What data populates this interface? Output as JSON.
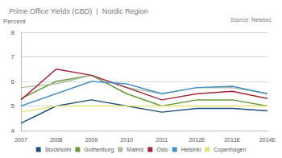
{
  "chart_data": {
    "type": "line",
    "title": "Prime Office Yields (CBD)  |  Nordic Region",
    "source": "Source: Newsec",
    "y_label": "Percent",
    "categories": [
      "2007",
      "2008",
      "2009",
      "2010",
      "2011",
      "2012E",
      "2013E",
      "2014E"
    ],
    "series": [
      {
        "name": "Stockholm",
        "color": "#1f4e79",
        "values": [
          4.3,
          5.0,
          5.25,
          5.0,
          4.75,
          4.9,
          4.9,
          4.8
        ]
      },
      {
        "name": "Gothenburg",
        "color": "#6a9a3a",
        "values": [
          5.3,
          6.0,
          6.25,
          5.5,
          5.0,
          5.25,
          5.25,
          5.0
        ]
      },
      {
        "name": "Malmö",
        "color": "#a9bfa0",
        "values": [
          5.75,
          5.9,
          6.25,
          5.75,
          5.5,
          5.75,
          5.75,
          5.5
        ]
      },
      {
        "name": "Oslo",
        "color": "#a4243b",
        "values": [
          5.25,
          6.5,
          6.25,
          5.75,
          5.25,
          5.5,
          5.6,
          5.3
        ]
      },
      {
        "name": "Helsinki",
        "color": "#4a90c8",
        "values": [
          5.0,
          5.5,
          6.0,
          5.9,
          5.5,
          5.75,
          5.8,
          5.5
        ]
      },
      {
        "name": "Copenhagen",
        "color": "#e3e37a",
        "values": [
          4.75,
          5.0,
          5.0,
          5.0,
          5.0,
          5.0,
          5.0,
          5.0
        ]
      }
    ],
    "ylim": [
      4,
      8
    ],
    "yticks": [
      4,
      5,
      6,
      7,
      8
    ],
    "grid": true,
    "legend": "bottom"
  }
}
